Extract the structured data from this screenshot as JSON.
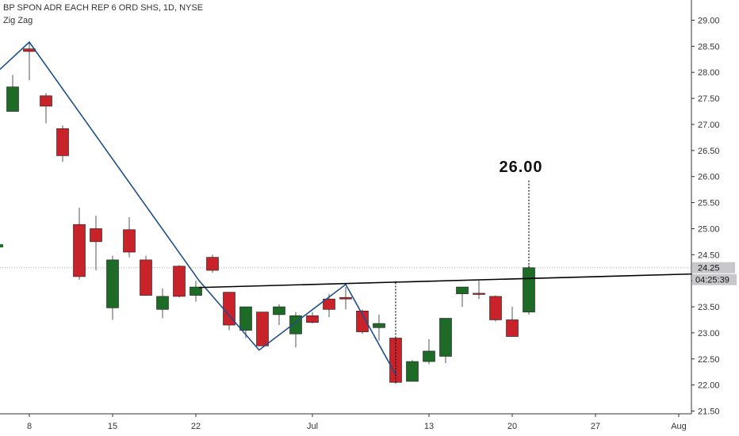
{
  "header": {
    "symbol_line": "BP SPON ADR EACH REP 6 ORD SHS, 1D, NYSE",
    "indicator": "Zig Zag"
  },
  "colors": {
    "up": "#1e6b28",
    "down": "#c8222a",
    "wick": "#555555",
    "zigzag": "#1f4e8c",
    "trendline": "#000000",
    "axis": "#333333",
    "price_tag_bg": "#c8c8cc",
    "price_line": "#bbbbbb"
  },
  "chart_data": {
    "type": "candlestick",
    "title": "BP SPON ADR EACH REP 6 ORD SHS, 1D, NYSE",
    "indicator_label": "Zig Zag",
    "ylim": [
      21.4,
      29.2
    ],
    "y_ticks": [
      "21.50",
      "22.00",
      "22.50",
      "23.00",
      "23.50",
      "24.00",
      "24.50",
      "25.00",
      "25.50",
      "26.00",
      "26.50",
      "27.00",
      "27.50",
      "28.00",
      "28.50",
      "29.00"
    ],
    "x_ticks": [
      {
        "label": "8",
        "day": 1
      },
      {
        "label": "15",
        "day": 6
      },
      {
        "label": "22",
        "day": 11
      },
      {
        "label": "Jul",
        "day": 18
      },
      {
        "label": "13",
        "day": 25
      },
      {
        "label": "20",
        "day": 30
      },
      {
        "label": "27",
        "day": 35
      },
      {
        "label": "Aug",
        "day": 40
      }
    ],
    "candles": [
      {
        "day": 0,
        "o": 27.25,
        "h": 27.95,
        "l": 27.25,
        "c": 27.72
      },
      {
        "day": 1,
        "o": 28.45,
        "h": 28.58,
        "l": 27.85,
        "c": 28.4
      },
      {
        "day": 2,
        "o": 27.55,
        "h": 27.6,
        "l": 27.02,
        "c": 27.35
      },
      {
        "day": 3,
        "o": 26.92,
        "h": 26.98,
        "l": 26.28,
        "c": 26.4
      },
      {
        "day": 4,
        "o": 25.08,
        "h": 25.4,
        "l": 24.02,
        "c": 24.08
      },
      {
        "day": 5,
        "o": 25.0,
        "h": 25.25,
        "l": 24.2,
        "c": 24.75
      },
      {
        "day": 6,
        "o": 23.48,
        "h": 24.48,
        "l": 23.25,
        "c": 24.4
      },
      {
        "day": 7,
        "o": 24.98,
        "h": 25.22,
        "l": 24.45,
        "c": 24.55
      },
      {
        "day": 8,
        "o": 24.4,
        "h": 24.48,
        "l": 23.72,
        "c": 23.72
      },
      {
        "day": 9,
        "o": 23.45,
        "h": 23.85,
        "l": 23.28,
        "c": 23.7
      },
      {
        "day": 10,
        "o": 24.28,
        "h": 24.3,
        "l": 23.68,
        "c": 23.7
      },
      {
        "day": 11,
        "o": 23.72,
        "h": 24.0,
        "l": 23.6,
        "c": 23.88
      },
      {
        "day": 12,
        "o": 24.45,
        "h": 24.5,
        "l": 24.15,
        "c": 24.2
      },
      {
        "day": 13,
        "o": 23.78,
        "h": 23.78,
        "l": 23.05,
        "c": 23.15
      },
      {
        "day": 14,
        "o": 23.05,
        "h": 23.5,
        "l": 22.9,
        "c": 23.5
      },
      {
        "day": 15,
        "o": 23.4,
        "h": 23.4,
        "l": 22.75,
        "c": 22.75
      },
      {
        "day": 16,
        "o": 23.35,
        "h": 23.55,
        "l": 23.15,
        "c": 23.5
      },
      {
        "day": 17,
        "o": 22.98,
        "h": 23.4,
        "l": 22.72,
        "c": 23.33
      },
      {
        "day": 18,
        "o": 23.33,
        "h": 23.4,
        "l": 23.18,
        "c": 23.2
      },
      {
        "day": 19,
        "o": 23.65,
        "h": 23.75,
        "l": 23.3,
        "c": 23.45
      },
      {
        "day": 20,
        "o": 23.68,
        "h": 23.88,
        "l": 23.45,
        "c": 23.65
      },
      {
        "day": 21,
        "o": 23.42,
        "h": 23.45,
        "l": 22.98,
        "c": 23.02
      },
      {
        "day": 22,
        "o": 23.1,
        "h": 23.35,
        "l": 22.85,
        "c": 23.18
      },
      {
        "day": 23,
        "o": 22.9,
        "h": 22.92,
        "l": 22.02,
        "c": 22.05
      },
      {
        "day": 24,
        "o": 22.07,
        "h": 22.48,
        "l": 22.07,
        "c": 22.45
      },
      {
        "day": 25,
        "o": 22.45,
        "h": 22.88,
        "l": 22.4,
        "c": 22.65
      },
      {
        "day": 26,
        "o": 22.55,
        "h": 23.28,
        "l": 22.42,
        "c": 23.28
      },
      {
        "day": 27,
        "o": 23.75,
        "h": 23.88,
        "l": 23.5,
        "c": 23.88
      },
      {
        "day": 28,
        "o": 23.76,
        "h": 24.0,
        "l": 23.65,
        "c": 23.74
      },
      {
        "day": 29,
        "o": 23.7,
        "h": 23.72,
        "l": 23.22,
        "c": 23.25
      },
      {
        "day": 30,
        "o": 23.25,
        "h": 23.5,
        "l": 22.93,
        "c": 22.93
      },
      {
        "day": 31,
        "o": 23.4,
        "h": 24.3,
        "l": 23.35,
        "c": 24.25
      }
    ],
    "zigzag": [
      {
        "day": -1.8,
        "y": 27.75
      },
      {
        "day": 1,
        "y": 28.58
      },
      {
        "day": 11.2,
        "y": 24.0
      },
      {
        "day": 14.8,
        "y": 22.67
      },
      {
        "day": 20,
        "y": 23.93
      },
      {
        "day": 23,
        "y": 22.2
      }
    ],
    "trendline": [
      {
        "day": 11.2,
        "y": 23.87
      },
      {
        "day": 40.8,
        "y": 24.13
      }
    ],
    "projections": [
      {
        "day": 23,
        "from": 22.05,
        "to": 24.0
      },
      {
        "day": 31,
        "from": 24.25,
        "to": 25.95
      }
    ],
    "target_label": "26.00",
    "last_price": "24.25",
    "countdown": "04:25:39"
  }
}
